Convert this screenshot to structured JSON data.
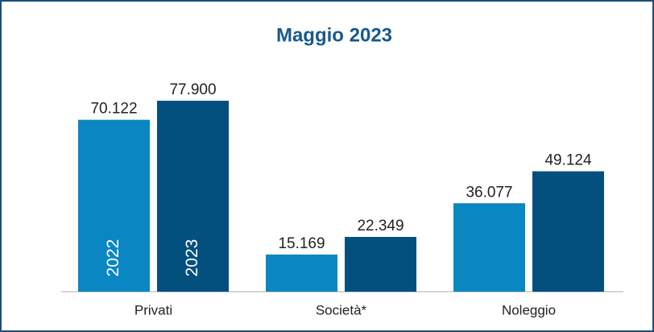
{
  "chart_data": {
    "type": "bar",
    "title": "Maggio 2023",
    "categories": [
      "Privati",
      "Società*",
      "Noleggio"
    ],
    "series": [
      {
        "name": "2022",
        "color": "#0a87c2",
        "values": [
          70122,
          15169,
          36077
        ],
        "value_labels": [
          "70.122",
          "15.169",
          "36.077"
        ]
      },
      {
        "name": "2023",
        "color": "#03507f",
        "values": [
          77900,
          22349,
          49124
        ],
        "value_labels": [
          "77.900",
          "22.349",
          "49.124"
        ]
      }
    ]
  }
}
